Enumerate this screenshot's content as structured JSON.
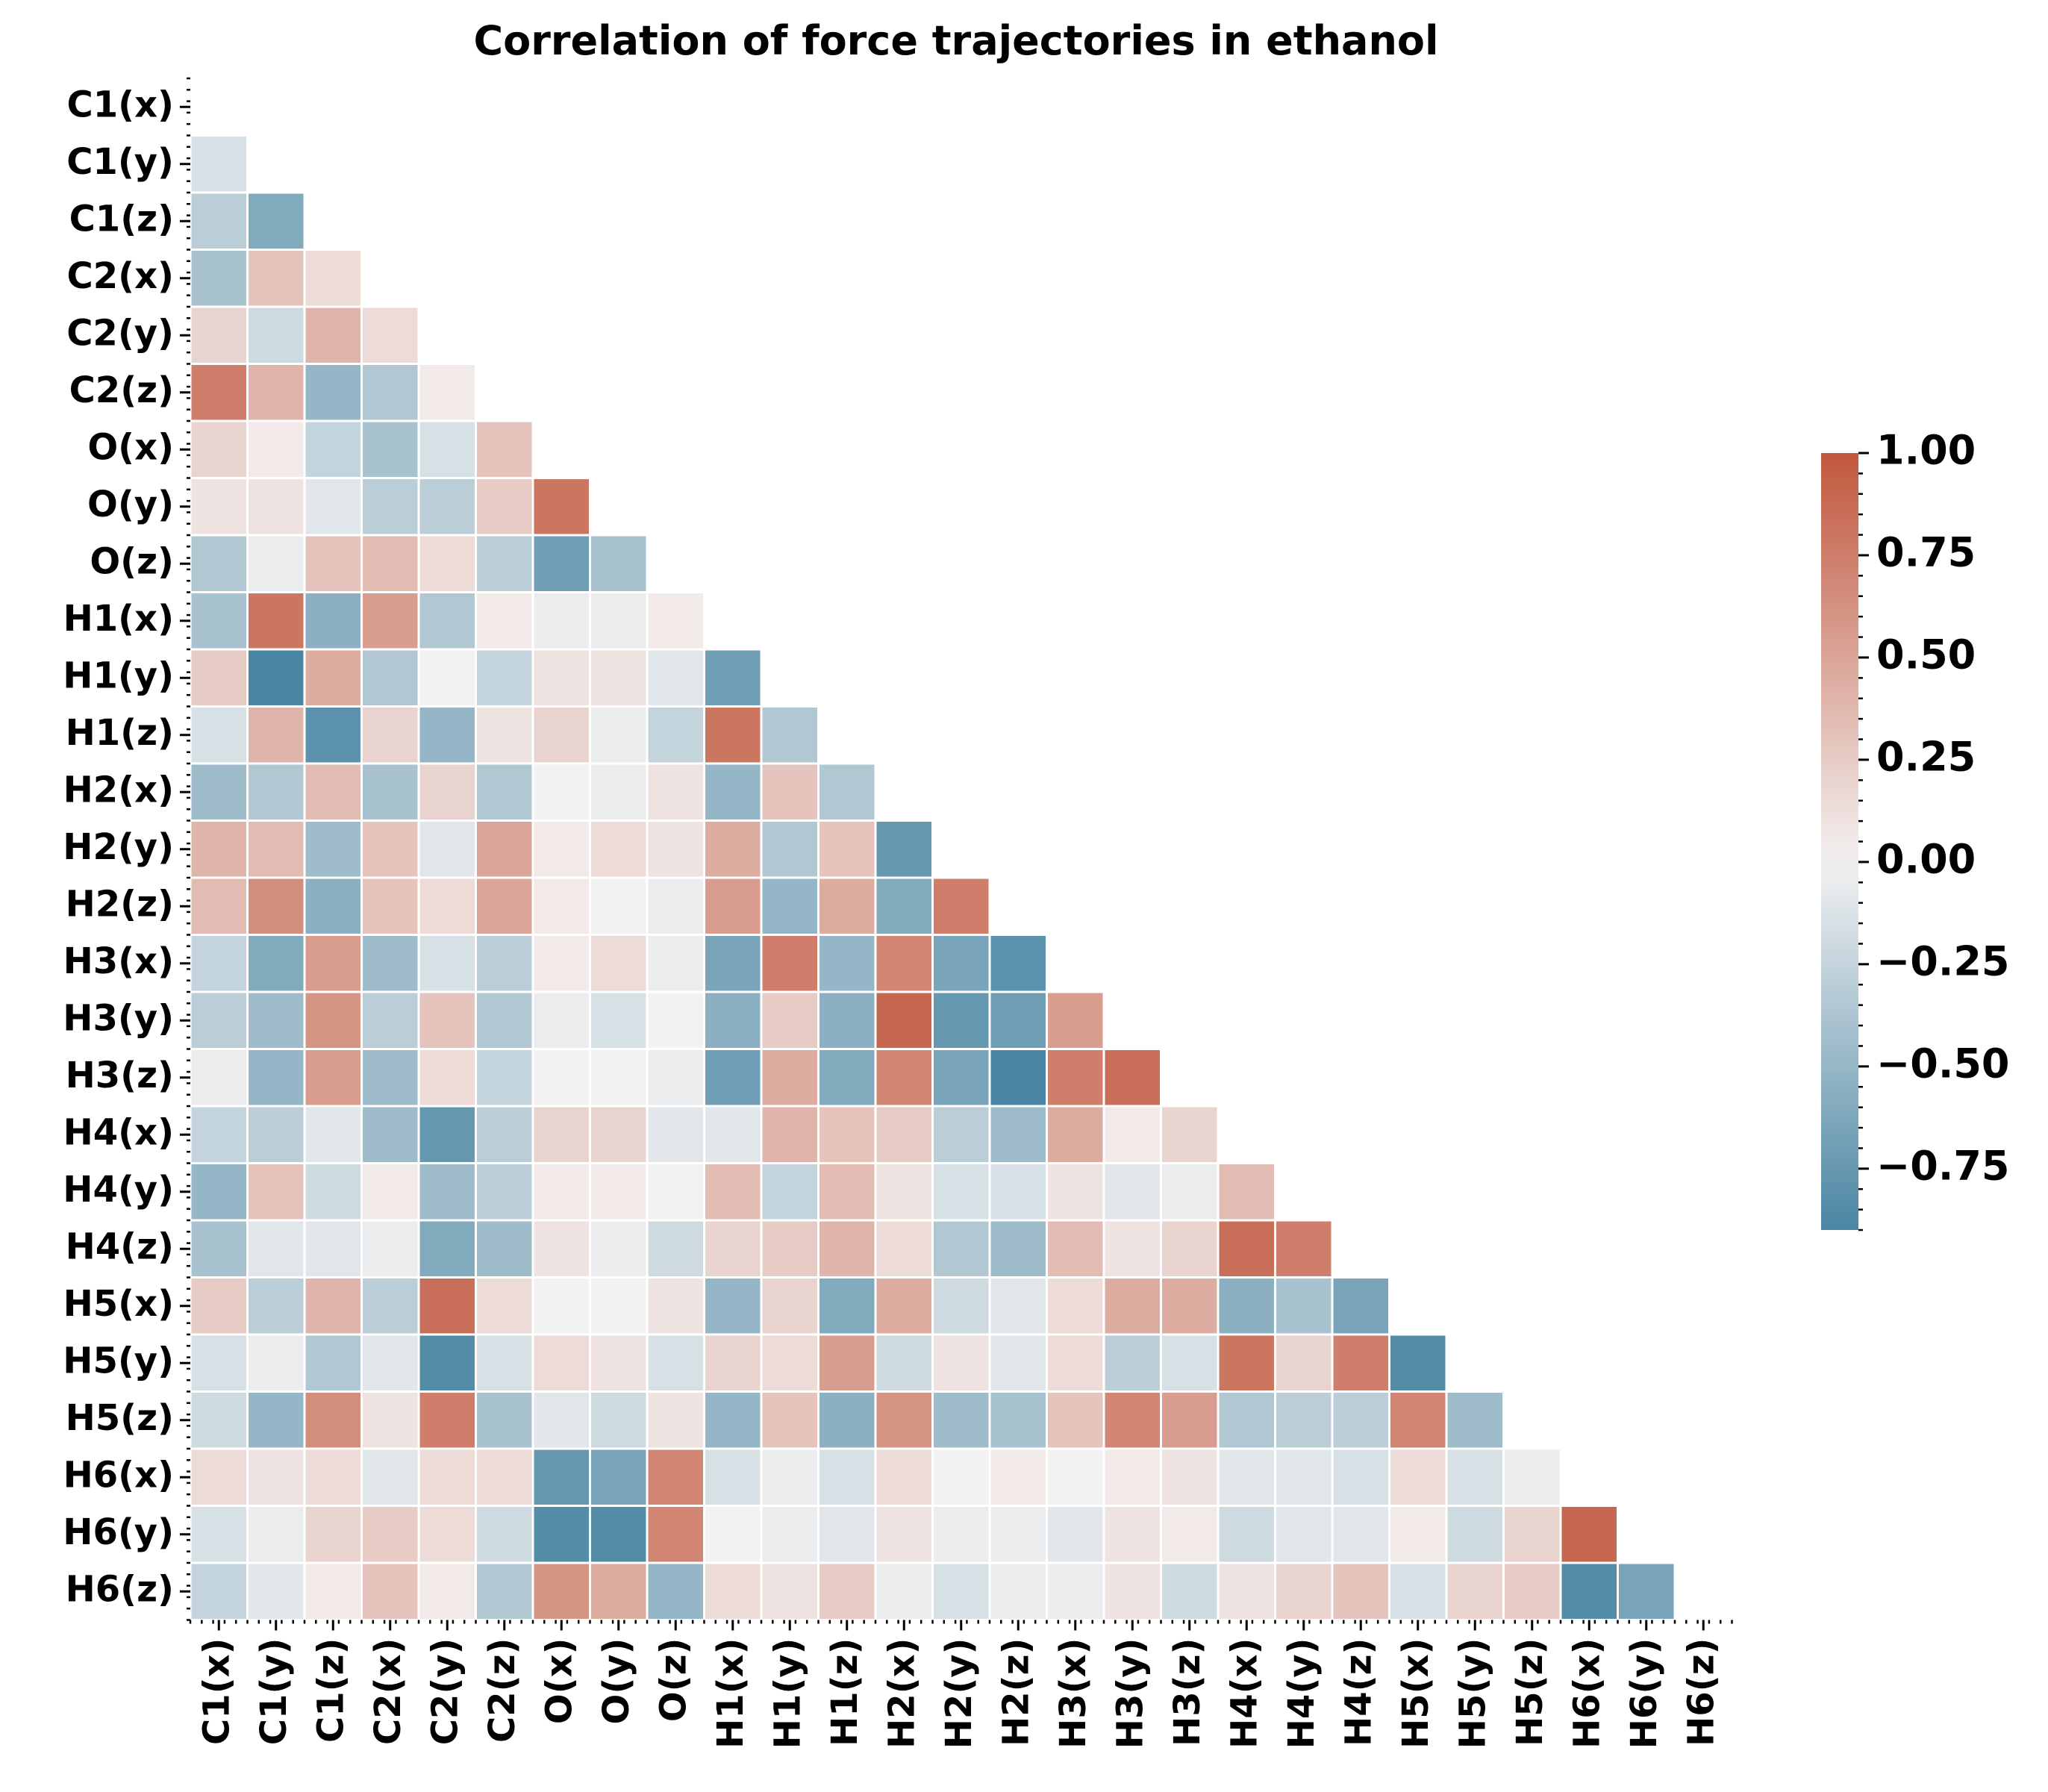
{
  "chart_data": {
    "type": "heatmap",
    "title": "Correlation of force trajectories in ethanol",
    "labels": [
      "C1(x)",
      "C1(y)",
      "C1(z)",
      "C2(x)",
      "C2(y)",
      "C2(z)",
      "O(x)",
      "O(y)",
      "O(z)",
      "H1(x)",
      "H1(y)",
      "H1(z)",
      "H2(x)",
      "H2(y)",
      "H2(z)",
      "H3(x)",
      "H3(y)",
      "H3(z)",
      "H4(x)",
      "H4(y)",
      "H4(z)",
      "H5(x)",
      "H5(y)",
      "H5(z)",
      "H6(x)",
      "H6(y)",
      "H6(z)"
    ],
    "mask": "upper-triangle-including-diagonal",
    "matrix": [
      [],
      [
        -0.15
      ],
      [
        -0.3,
        -0.6
      ],
      [
        -0.4,
        0.3,
        0.15
      ],
      [
        0.2,
        -0.2,
        0.4,
        0.15
      ],
      [
        0.75,
        0.4,
        -0.5,
        -0.35,
        0.05
      ],
      [
        0.2,
        0.05,
        -0.25,
        -0.4,
        -0.15,
        0.3
      ],
      [
        0.1,
        0.1,
        -0.1,
        -0.3,
        -0.3,
        0.25,
        0.8
      ],
      [
        -0.35,
        -0.05,
        0.3,
        0.35,
        0.15,
        -0.3,
        -0.7,
        -0.4
      ],
      [
        -0.4,
        0.8,
        -0.55,
        0.55,
        -0.35,
        0.05,
        -0.05,
        -0.05,
        0.05
      ],
      [
        0.25,
        -0.95,
        0.45,
        -0.35,
        0.0,
        -0.25,
        0.1,
        0.1,
        -0.1,
        -0.7
      ],
      [
        -0.15,
        0.4,
        -0.8,
        0.2,
        -0.5,
        0.1,
        0.2,
        -0.05,
        -0.25,
        0.8,
        -0.35
      ],
      [
        -0.45,
        -0.35,
        0.35,
        -0.4,
        0.2,
        -0.35,
        0.0,
        -0.05,
        0.1,
        -0.5,
        0.3,
        -0.35
      ],
      [
        0.4,
        0.35,
        -0.45,
        0.3,
        -0.1,
        0.5,
        0.05,
        0.15,
        0.1,
        0.45,
        -0.35,
        0.3,
        -0.75
      ],
      [
        0.35,
        0.65,
        -0.55,
        0.3,
        0.15,
        0.5,
        0.05,
        0.0,
        -0.05,
        0.55,
        -0.5,
        0.45,
        -0.6,
        0.75
      ],
      [
        -0.25,
        -0.6,
        0.55,
        -0.45,
        -0.15,
        -0.3,
        0.05,
        0.15,
        -0.05,
        -0.65,
        0.75,
        -0.5,
        0.7,
        -0.65,
        -0.8
      ],
      [
        -0.3,
        -0.45,
        0.6,
        -0.3,
        0.3,
        -0.35,
        -0.05,
        -0.15,
        0.0,
        -0.55,
        0.25,
        -0.55,
        0.9,
        -0.75,
        -0.7,
        0.55
      ],
      [
        -0.05,
        -0.5,
        0.55,
        -0.45,
        0.15,
        -0.25,
        0.0,
        0.0,
        -0.05,
        -0.7,
        0.45,
        -0.6,
        0.7,
        -0.65,
        -0.9,
        0.75,
        0.85
      ],
      [
        -0.25,
        -0.3,
        -0.1,
        -0.45,
        -0.75,
        -0.3,
        0.2,
        0.2,
        -0.1,
        -0.1,
        0.4,
        0.3,
        0.25,
        -0.3,
        -0.45,
        0.45,
        0.05,
        0.2
      ],
      [
        -0.5,
        0.3,
        -0.2,
        0.05,
        -0.45,
        -0.3,
        0.05,
        0.05,
        0.0,
        0.35,
        -0.25,
        0.35,
        0.1,
        -0.15,
        -0.15,
        0.1,
        -0.1,
        -0.05,
        0.35
      ],
      [
        -0.4,
        -0.1,
        -0.1,
        -0.05,
        -0.6,
        -0.45,
        0.1,
        -0.05,
        -0.2,
        0.2,
        0.25,
        0.4,
        0.15,
        -0.35,
        -0.45,
        0.35,
        0.1,
        0.2,
        0.85,
        0.75
      ],
      [
        0.25,
        -0.3,
        0.4,
        -0.3,
        0.85,
        0.15,
        0.0,
        0.0,
        0.1,
        -0.5,
        0.2,
        -0.6,
        0.45,
        -0.2,
        -0.1,
        0.15,
        0.45,
        0.45,
        -0.55,
        -0.4,
        -0.65
      ],
      [
        -0.15,
        -0.05,
        -0.35,
        -0.1,
        -0.85,
        -0.15,
        0.15,
        0.1,
        -0.15,
        0.2,
        0.15,
        0.55,
        -0.2,
        0.1,
        -0.1,
        0.15,
        -0.3,
        -0.15,
        0.8,
        0.2,
        0.75,
        -0.85
      ],
      [
        -0.2,
        -0.5,
        0.65,
        0.1,
        0.75,
        -0.4,
        -0.1,
        -0.2,
        0.1,
        -0.5,
        0.3,
        -0.55,
        0.6,
        -0.45,
        -0.4,
        0.3,
        0.7,
        0.55,
        -0.35,
        -0.3,
        -0.3,
        0.7,
        -0.45
      ],
      [
        0.15,
        0.1,
        0.15,
        -0.1,
        0.15,
        0.15,
        -0.75,
        -0.65,
        0.7,
        -0.15,
        -0.05,
        -0.15,
        0.15,
        0.0,
        0.05,
        0.0,
        0.05,
        0.1,
        -0.1,
        -0.1,
        -0.15,
        0.15,
        -0.15,
        -0.05
      ],
      [
        -0.15,
        -0.05,
        0.2,
        0.25,
        0.15,
        -0.2,
        -0.85,
        -0.85,
        0.7,
        0.0,
        -0.05,
        -0.1,
        0.1,
        -0.05,
        -0.05,
        -0.1,
        0.1,
        0.05,
        -0.2,
        -0.1,
        -0.1,
        0.05,
        -0.2,
        0.2,
        0.9
      ],
      [
        -0.25,
        -0.1,
        0.05,
        0.3,
        0.05,
        -0.35,
        0.6,
        0.45,
        -0.5,
        0.15,
        0.1,
        0.25,
        -0.05,
        -0.15,
        -0.05,
        -0.05,
        0.1,
        -0.2,
        0.1,
        0.2,
        0.3,
        -0.15,
        0.2,
        0.25,
        -0.85,
        -0.65
      ]
    ],
    "colorbar": {
      "vmin": -0.9,
      "vmax": 1.0,
      "ticks": [
        1.0,
        0.75,
        0.5,
        0.25,
        0.0,
        -0.25,
        -0.5,
        -0.75
      ],
      "tick_labels": [
        "1.00",
        "0.75",
        "0.50",
        "0.25",
        "0.00",
        "−0.25",
        "−0.50",
        "−0.75"
      ],
      "colors": {
        "negative": "#4a86a3",
        "neutral": "#f3f2f2",
        "positive": "#c1573d"
      }
    },
    "grid": false,
    "legend": "colorbar-right"
  }
}
